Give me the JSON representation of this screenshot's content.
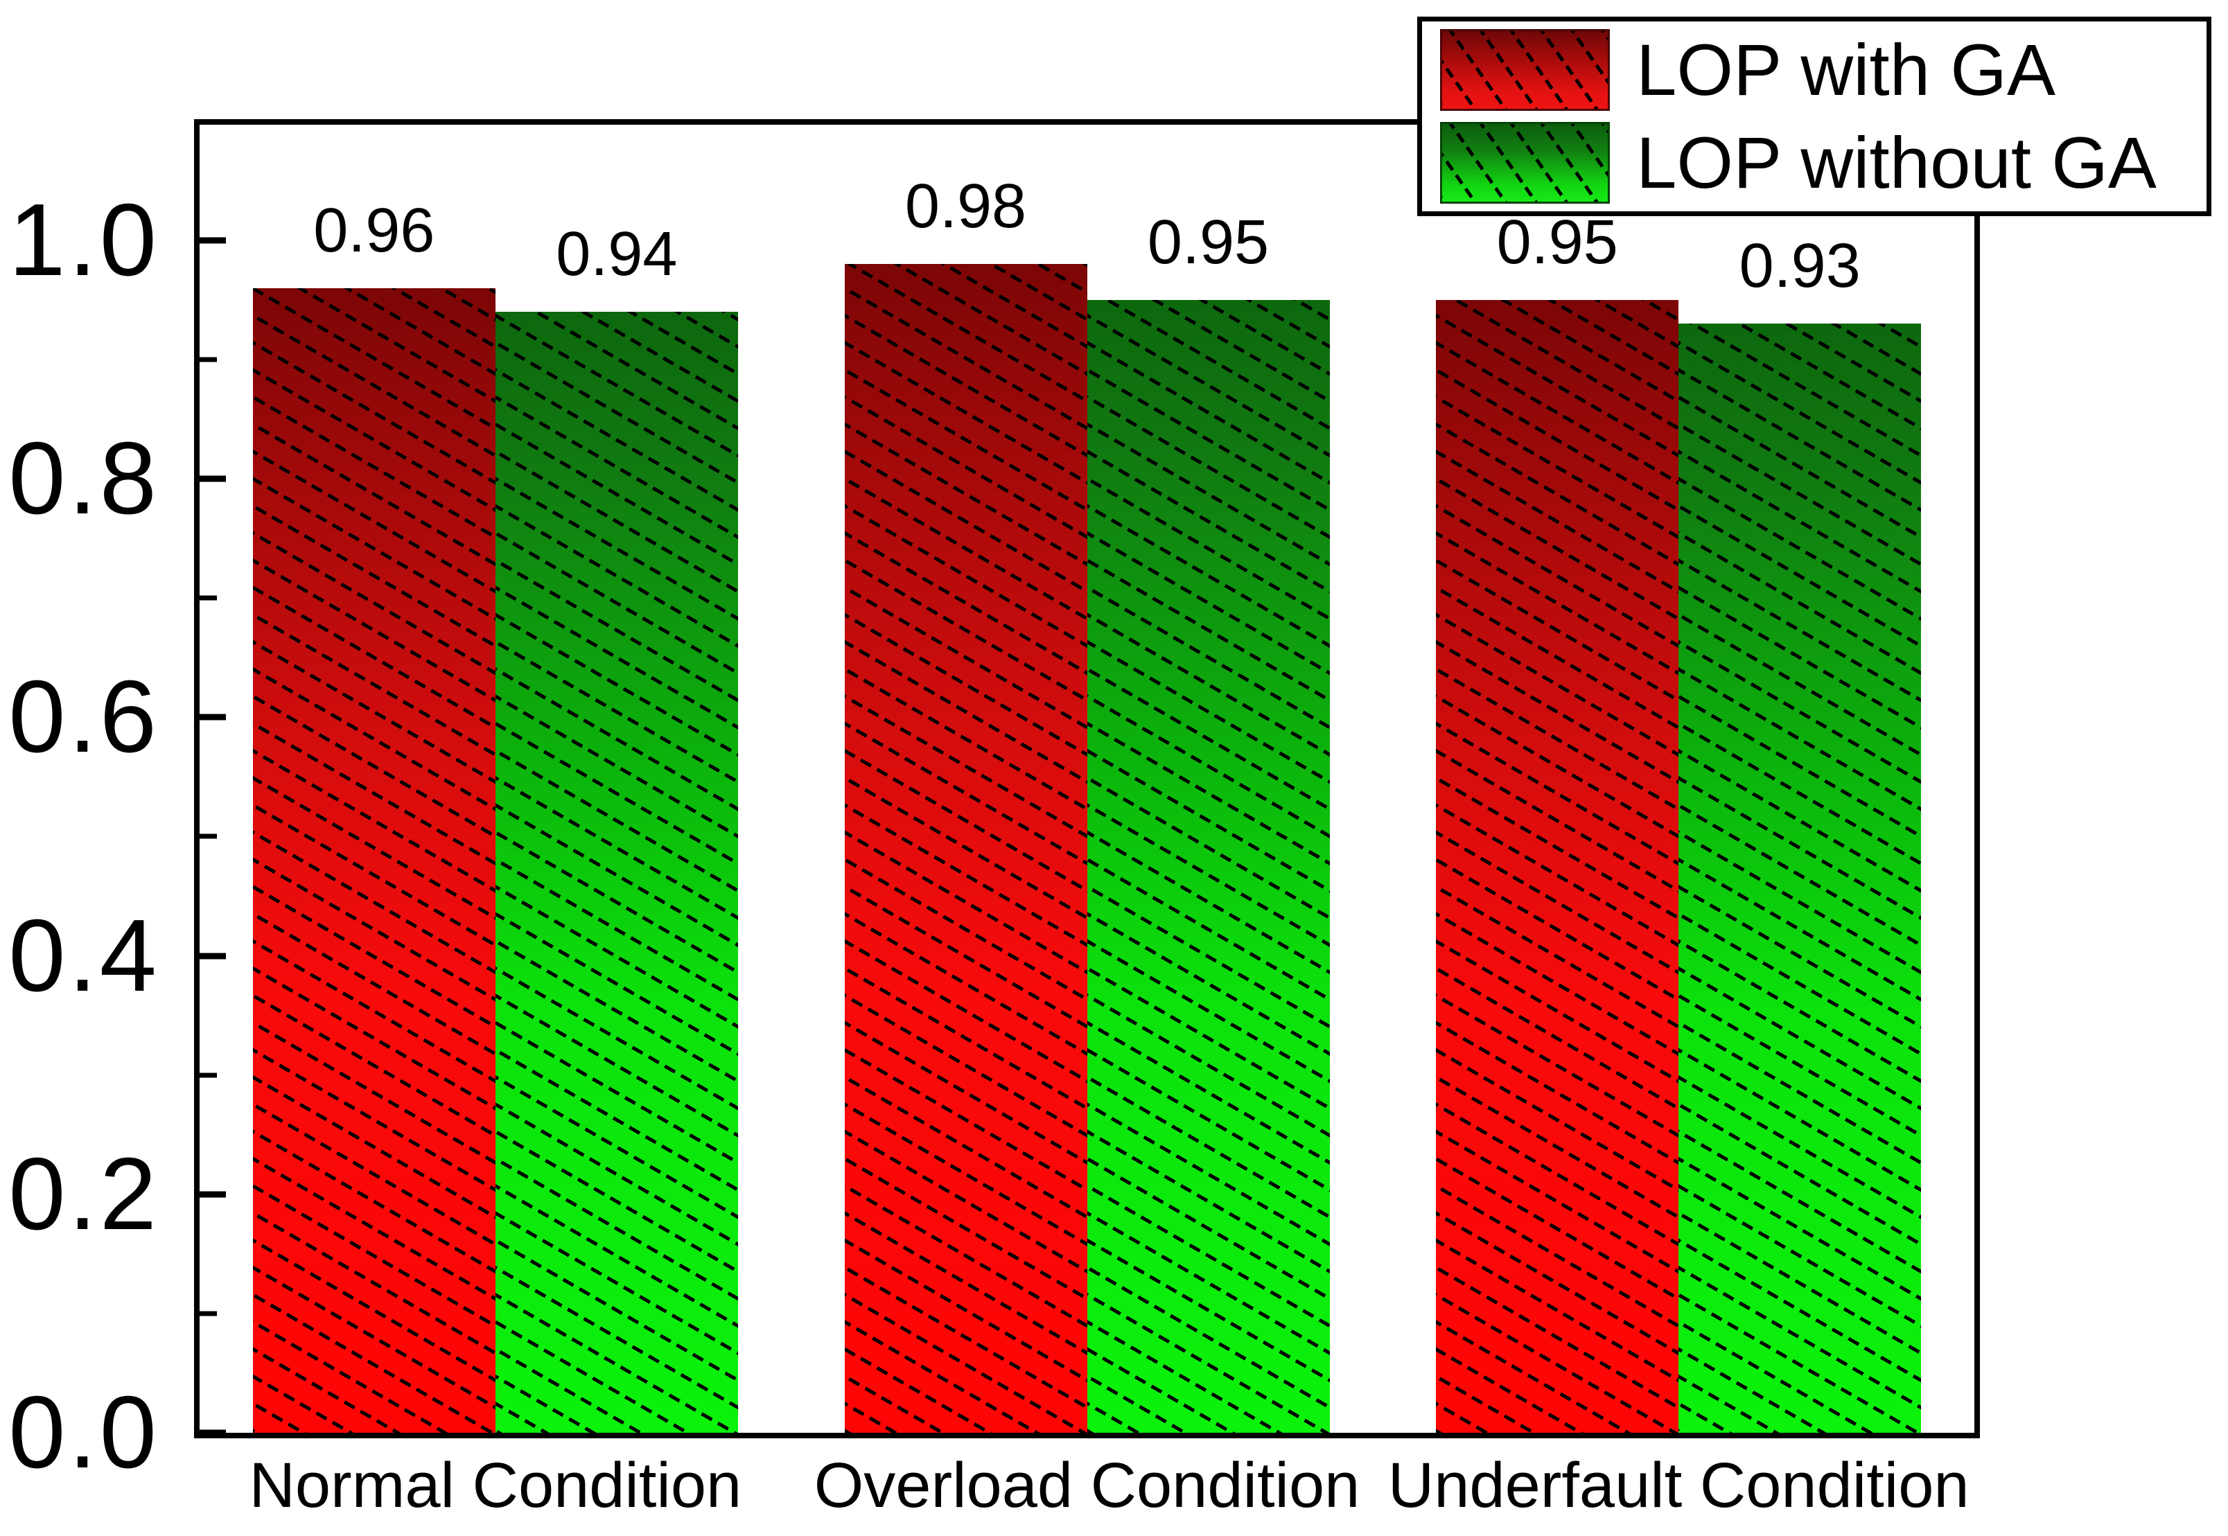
{
  "chart_data": {
    "type": "bar",
    "title": "",
    "categories": [
      "Normal Condition",
      "Overload Condition",
      "Underfault Condition"
    ],
    "series": [
      {
        "name": "LOP with GA",
        "key": "red",
        "values": [
          0.96,
          0.98,
          0.95
        ],
        "color_top": "#7c0606",
        "color_bottom": "#fd0505"
      },
      {
        "name": "LOP without GA",
        "key": "green",
        "values": [
          0.94,
          0.95,
          0.93
        ],
        "color_top": "#0d680d",
        "color_bottom": "#0bf20b"
      }
    ],
    "value_labels": [
      [
        "0.96",
        "0.98",
        "0.95"
      ],
      [
        "0.94",
        "0.95",
        "0.93"
      ]
    ],
    "xlabel": "",
    "ylabel": "",
    "ylim": [
      0,
      1.1
    ],
    "y_axis": {
      "major_ticks": [
        1.0,
        0.8,
        0.6,
        0.4,
        0.2,
        0.0
      ],
      "major_labels": [
        "1.0",
        "0.8",
        "0.6",
        "0.4",
        "0.2",
        "0.0"
      ],
      "minor_ticks": [
        0.9,
        0.7,
        0.5,
        0.3,
        0.1
      ],
      "max_display": 1.097
    },
    "grid": "off",
    "legend_position": "top-right",
    "hatch": "diagonal-dashed",
    "colors": {
      "bar_red": "#fd0505",
      "bar_green": "#0bf20b",
      "axis": "#000000",
      "background": "#ffffff"
    }
  }
}
